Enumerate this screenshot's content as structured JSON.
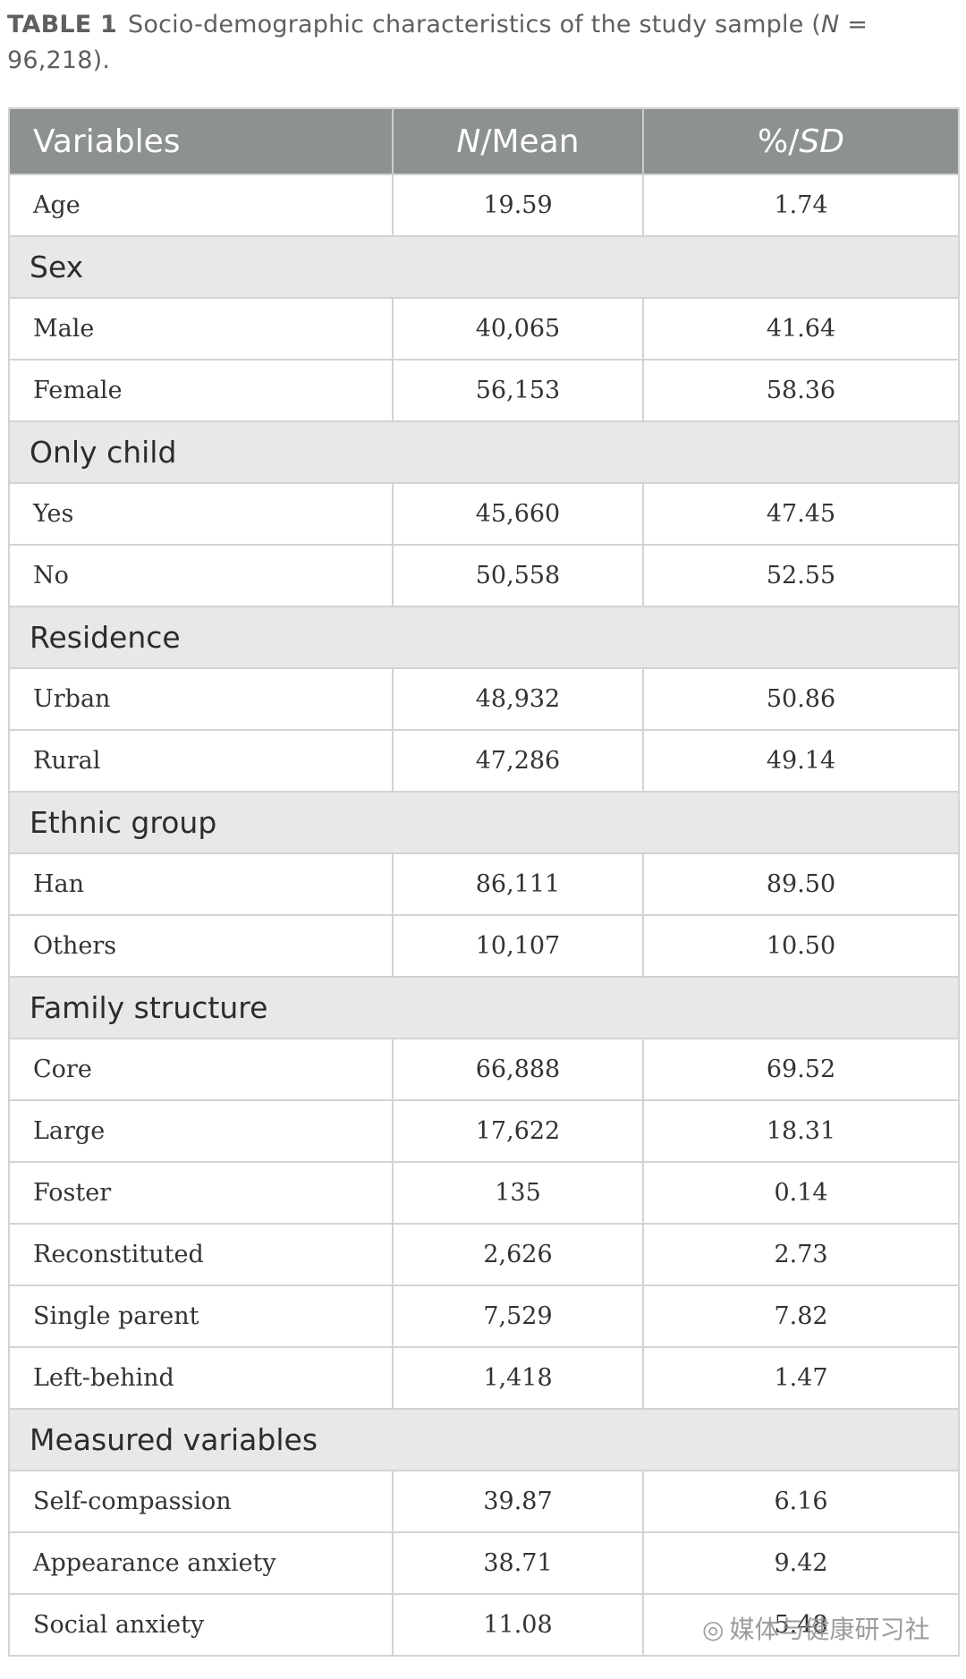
{
  "caption": {
    "label": "TABLE 1",
    "text_before_n": "Socio-demographic characteristics of the study sample (",
    "n_symbol": "N",
    "text_after_n": " = 96,218)."
  },
  "table": {
    "headers": {
      "variables": "Variables",
      "n_mean_prefix": "N",
      "n_mean_suffix": "/Mean",
      "pct_sd_prefix": "%/",
      "pct_sd_suffix": "SD"
    },
    "age": {
      "label": "Age",
      "n": "19.59",
      "pct": "1.74"
    },
    "sections": [
      {
        "title": "Sex",
        "rows": [
          {
            "label": "Male",
            "n": "40,065",
            "pct": "41.64"
          },
          {
            "label": "Female",
            "n": "56,153",
            "pct": "58.36"
          }
        ]
      },
      {
        "title": "Only child",
        "rows": [
          {
            "label": "Yes",
            "n": "45,660",
            "pct": "47.45"
          },
          {
            "label": "No",
            "n": "50,558",
            "pct": "52.55"
          }
        ]
      },
      {
        "title": "Residence",
        "rows": [
          {
            "label": "Urban",
            "n": "48,932",
            "pct": "50.86"
          },
          {
            "label": "Rural",
            "n": "47,286",
            "pct": "49.14"
          }
        ]
      },
      {
        "title": "Ethnic group",
        "rows": [
          {
            "label": "Han",
            "n": "86,111",
            "pct": "89.50"
          },
          {
            "label": "Others",
            "n": "10,107",
            "pct": "10.50"
          }
        ]
      },
      {
        "title": "Family structure",
        "rows": [
          {
            "label": "Core",
            "n": "66,888",
            "pct": "69.52"
          },
          {
            "label": "Large",
            "n": "17,622",
            "pct": "18.31"
          },
          {
            "label": "Foster",
            "n": "135",
            "pct": "0.14"
          },
          {
            "label": "Reconstituted",
            "n": "2,626",
            "pct": "2.73"
          },
          {
            "label": "Single parent",
            "n": "7,529",
            "pct": "7.82"
          },
          {
            "label": "Left-behind",
            "n": "1,418",
            "pct": "1.47"
          }
        ]
      },
      {
        "title": "Measured variables",
        "rows": [
          {
            "label": "Self-compassion",
            "n": "39.87",
            "pct": "6.16"
          },
          {
            "label": "Appearance anxiety",
            "n": "38.71",
            "pct": "9.42"
          },
          {
            "label": "Social anxiety",
            "n": "11.08",
            "pct": "5.48"
          }
        ]
      }
    ]
  },
  "watermark": {
    "icon": "wechat-icon",
    "text": "媒体与健康研习社"
  }
}
